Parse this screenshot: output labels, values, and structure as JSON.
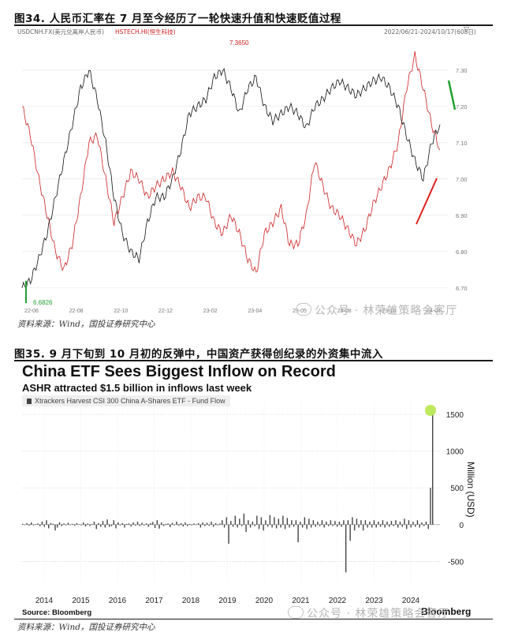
{
  "figure34": {
    "title": "图34. 人民币汇率在 7 月至今经历了一轮快速升值和快速贬值过程",
    "legend_left": "USDCNH.FX(美元兑离岸人民币)",
    "legend_right": "HSTECH.HI(恒生科技)",
    "date_range": "2022/06/21-2024/10/17(608日)",
    "annot_high": "7.3650",
    "annot_low": "6.6826",
    "source": "资料来源：Wind，国投证券研究中心",
    "chart_data": {
      "type": "line",
      "x_ticks": [
        "22-06",
        "22-08",
        "22-10",
        "22-12",
        "23-02",
        "23-04",
        "23-05",
        "23-08",
        "23-10",
        "24-04"
      ],
      "y_ticks": [
        "7.30",
        "7.20",
        "7.10",
        "7.00",
        "6.90",
        "6.80",
        "6.70"
      ],
      "ylim": [
        6.68,
        7.38
      ],
      "series": [
        {
          "name": "USDCNH.FX(美元兑离岸人民币)",
          "color": "#111111",
          "values": [
            6.7,
            6.72,
            6.78,
            6.85,
            6.95,
            7.05,
            7.15,
            7.25,
            7.3,
            7.22,
            7.1,
            6.95,
            6.85,
            6.8,
            6.78,
            6.88,
            6.95,
            6.95,
            7.0,
            7.08,
            7.18,
            7.2,
            7.22,
            7.28,
            7.3,
            7.25,
            7.18,
            7.25,
            7.28,
            7.2,
            7.16,
            7.18,
            7.2,
            7.18,
            7.14,
            7.2,
            7.22,
            7.25,
            7.27,
            7.25,
            7.23,
            7.25,
            7.27,
            7.28,
            7.25,
            7.2,
            7.12,
            7.05,
            7.0,
            7.1,
            7.15
          ]
        },
        {
          "name": "HSTECH.HI(恒生科技)",
          "color": "#cc1f1f",
          "values": [
            7.2,
            7.12,
            7.0,
            6.9,
            6.8,
            6.75,
            6.82,
            6.95,
            7.1,
            7.12,
            7.0,
            6.88,
            6.95,
            7.02,
            7.0,
            6.95,
            6.98,
            7.0,
            7.02,
            6.98,
            6.92,
            6.95,
            6.95,
            6.88,
            6.85,
            6.9,
            6.85,
            6.78,
            6.74,
            6.85,
            6.88,
            6.92,
            6.82,
            6.82,
            6.9,
            7.05,
            6.98,
            6.92,
            6.9,
            6.86,
            6.82,
            6.86,
            6.93,
            6.98,
            7.03,
            7.1,
            7.25,
            7.34,
            7.25,
            7.15,
            7.08
          ]
        }
      ]
    }
  },
  "figure35": {
    "title": "图35. 9 月下旬到 10 月初的反弹中，中国资产获得创纪录的外资集中流入",
    "source": "资料来源：Wind，国投证券研究中心",
    "chart_data": {
      "type": "bar",
      "title": "China ETF Sees Biggest Inflow on Record",
      "subtitle": "ASHR attracted $1.5 billion in inflows last week",
      "series_name": "Xtrackers Harvest CSI 300 China A-Shares ETF - Fund Flow",
      "ylabel": "Million (USD)",
      "ylim": [
        -700,
        1650
      ],
      "y_ticks": [
        1500,
        1000,
        500,
        0,
        -500
      ],
      "x_ticks": [
        "2014",
        "2015",
        "2016",
        "2017",
        "2018",
        "2019",
        "2020",
        "2021",
        "2022",
        "2023",
        "2024"
      ],
      "values": [
        10,
        -5,
        20,
        -15,
        30,
        -10,
        5,
        15,
        -20,
        40,
        -30,
        60,
        -50,
        20,
        10,
        -80,
        -40,
        30,
        -20,
        15,
        -10,
        25,
        -5,
        10,
        -15,
        20,
        5,
        -10,
        30,
        -25,
        15,
        -20,
        10,
        40,
        -60,
        20,
        -30,
        50,
        -40,
        70,
        -30,
        -20,
        60,
        -50,
        30,
        -10,
        20,
        -40,
        10,
        15,
        -25,
        30,
        -15,
        40,
        -20,
        25,
        -10,
        15,
        -30,
        20,
        35,
        -45,
        60,
        -55,
        30,
        -20,
        10,
        15,
        -35,
        25,
        -10,
        40,
        -15,
        20,
        -25,
        30,
        -20,
        10,
        -10,
        15,
        -5,
        20,
        -40,
        30,
        -20,
        25,
        -15,
        40,
        -30,
        20,
        -10,
        15,
        60,
        -40,
        100,
        -260,
        50,
        -30,
        120,
        -40,
        80,
        -20,
        150,
        -100,
        60,
        -40,
        40,
        -20,
        120,
        -60,
        100,
        -80,
        60,
        -30,
        130,
        -40,
        100,
        -50,
        80,
        -40,
        120,
        -60,
        90,
        -40,
        60,
        -30,
        60,
        -240,
        40,
        -40,
        100,
        -60,
        80,
        -40,
        60,
        -30,
        40,
        -20,
        60,
        -40,
        40,
        -20,
        60,
        -20,
        50,
        -30,
        40,
        -30,
        60,
        -650,
        60,
        -220,
        100,
        -80,
        80,
        -40,
        60,
        -80,
        60,
        -40,
        40,
        -40,
        60,
        -40,
        40,
        -30,
        60,
        -40,
        40,
        -30,
        50,
        -20,
        60,
        -40,
        40,
        -30,
        80,
        -60,
        60,
        -40,
        40,
        -30,
        60,
        -40,
        30,
        -20,
        40,
        -60,
        500,
        1500
      ]
    },
    "bb_source": "Source: Bloomberg",
    "bb_logo": "Bloomberg"
  },
  "watermark": "公众号 · 林荣雄策略会客厅"
}
